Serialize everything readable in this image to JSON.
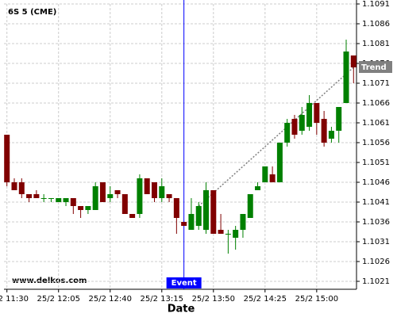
{
  "chart_data": {
    "type": "candlestick",
    "title": "6S 5 (CME)",
    "watermark": "www.delkos.com",
    "x_label": "Date",
    "x": [
      "25/2 11:30",
      "25/2 11:35",
      "25/2 11:40",
      "25/2 11:45",
      "25/2 11:50",
      "25/2 11:55",
      "25/2 12:00",
      "25/2 12:05",
      "25/2 12:10",
      "25/2 12:15",
      "25/2 12:20",
      "25/2 12:25",
      "25/2 12:30",
      "25/2 12:35",
      "25/2 12:40",
      "25/2 12:45",
      "25/2 12:50",
      "25/2 12:55",
      "25/2 13:00",
      "25/2 13:05",
      "25/2 13:10",
      "25/2 13:15",
      "25/2 13:20",
      "25/2 13:25",
      "25/2 13:30",
      "25/2 13:35",
      "25/2 13:40",
      "25/2 13:45",
      "25/2 13:50",
      "25/2 13:55",
      "25/2 14:00",
      "25/2 14:05",
      "25/2 14:10",
      "25/2 14:15",
      "25/2 14:20",
      "25/2 14:25",
      "25/2 14:30",
      "25/2 14:35",
      "25/2 14:40",
      "25/2 14:45",
      "25/2 14:50",
      "25/2 14:55",
      "25/2 15:00",
      "25/2 15:05",
      "25/2 15:10",
      "25/2 15:15",
      "25/2 15:20",
      "25/2 15:25"
    ],
    "open": [
      1.1058,
      1.1046,
      1.1046,
      1.1043,
      1.1043,
      1.1042,
      1.1042,
      1.1041,
      1.1041,
      1.1042,
      1.104,
      1.1039,
      1.1039,
      1.1046,
      1.1042,
      1.1044,
      1.1043,
      1.1038,
      1.1038,
      1.1047,
      1.1046,
      1.1042,
      1.1043,
      1.1042,
      1.1036,
      1.1034,
      1.1035,
      1.1034,
      1.1044,
      1.1034,
      1.1033,
      1.1032,
      1.1034,
      1.1037,
      1.1044,
      1.1046,
      1.1048,
      1.1046,
      1.1056,
      1.1062,
      1.1059,
      1.106,
      1.1066,
      1.1062,
      1.1057,
      1.1059,
      1.1066,
      1.1078
    ],
    "high": [
      1.1058,
      1.1047,
      1.1047,
      1.1043,
      1.1044,
      1.1043,
      1.1042,
      1.1042,
      1.1042,
      1.1042,
      1.104,
      1.104,
      1.1046,
      1.1046,
      1.1045,
      1.1044,
      1.1043,
      1.1038,
      1.1048,
      1.1047,
      1.1046,
      1.1047,
      1.1043,
      1.1042,
      1.1036,
      1.1042,
      1.1041,
      1.1046,
      1.1044,
      1.1038,
      1.1034,
      1.1035,
      1.1038,
      1.1043,
      1.1046,
      1.105,
      1.105,
      1.1056,
      1.1062,
      1.1063,
      1.1065,
      1.1068,
      1.1066,
      1.1064,
      1.106,
      1.1065,
      1.1082,
      1.1078
    ],
    "low": [
      1.1045,
      1.1044,
      1.1042,
      1.1041,
      1.1042,
      1.1041,
      1.1041,
      1.1041,
      1.104,
      1.1038,
      1.1037,
      1.1038,
      1.1039,
      1.1041,
      1.1041,
      1.1042,
      1.1038,
      1.1037,
      1.1037,
      1.1043,
      1.1041,
      1.1041,
      1.1041,
      1.1033,
      1.1035,
      1.1034,
      1.1034,
      1.1033,
      1.1033,
      1.1033,
      1.1028,
      1.1029,
      1.1032,
      1.1037,
      1.1044,
      1.1046,
      1.1046,
      1.1046,
      1.1055,
      1.1057,
      1.1058,
      1.1059,
      1.1058,
      1.1055,
      1.1056,
      1.1056,
      1.1066,
      1.1071
    ],
    "close": [
      1.1046,
      1.1044,
      1.1043,
      1.1042,
      1.1042,
      1.1042,
      1.1042,
      1.1042,
      1.1042,
      1.104,
      1.1039,
      1.104,
      1.1045,
      1.1041,
      1.1043,
      1.1043,
      1.1038,
      1.1037,
      1.1047,
      1.1043,
      1.1042,
      1.1045,
      1.1042,
      1.1037,
      1.1035,
      1.1038,
      1.104,
      1.1044,
      1.1033,
      1.1033,
      1.1033,
      1.1034,
      1.1038,
      1.1043,
      1.1045,
      1.105,
      1.1046,
      1.1056,
      1.1061,
      1.1058,
      1.1063,
      1.1066,
      1.1061,
      1.1056,
      1.1059,
      1.1065,
      1.1079,
      1.1075
    ],
    "up_color": "#008000",
    "down_color": "#800000",
    "xlim": [
      "25/2 11:28",
      "25/2 15:27"
    ],
    "xticks": [
      "25/2 11:30",
      "25/2 12:05",
      "25/2 12:40",
      "25/2 13:15",
      "25/2 13:50",
      "25/2 14:25",
      "25/2 15:00"
    ],
    "ylim": [
      1.1019,
      1.1091
    ],
    "yticks": [
      1.1021,
      1.1026,
      1.1031,
      1.1036,
      1.1041,
      1.1046,
      1.1051,
      1.1056,
      1.1061,
      1.1066,
      1.1071,
      1.1076,
      1.1081,
      1.1086,
      1.1091
    ],
    "grid": true,
    "event": {
      "x": "25/2 13:30",
      "label": "Event",
      "color": "#0000ff"
    },
    "trend": {
      "label": "Trend",
      "x": [
        "25/2 13:40",
        "25/2 15:25"
      ],
      "values": [
        1.104,
        1.1075
      ],
      "color": "#808080"
    }
  }
}
